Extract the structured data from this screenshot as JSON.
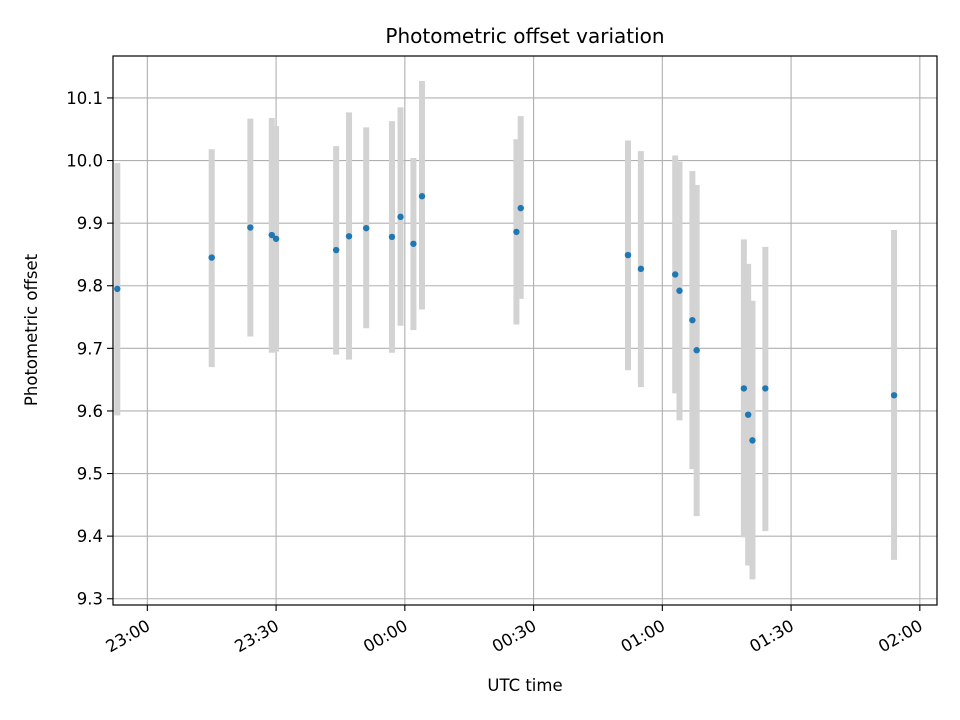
{
  "chart_data": {
    "type": "scatter",
    "title": "Photometric offset variation",
    "xlabel": "UTC time",
    "ylabel": "Photometric offset",
    "xlim": [
      "22:52",
      "02:04"
    ],
    "ylim": [
      9.29,
      10.167
    ],
    "xticks": [
      "23:00",
      "23:30",
      "00:00",
      "00:30",
      "01:00",
      "01:30",
      "02:00"
    ],
    "yticks": [
      "9.3",
      "9.4",
      "9.5",
      "9.6",
      "9.7",
      "9.8",
      "9.9",
      "10.0",
      "10.1"
    ],
    "grid": true,
    "error_bars": true,
    "colors": {
      "point": "#1f77b4",
      "errorbar": "#d3d3d3",
      "grid": "#b0b0b0"
    },
    "points": [
      {
        "t": "22:53",
        "y": 9.795,
        "lo": 9.593,
        "hi": 9.996
      },
      {
        "t": "23:15",
        "y": 9.845,
        "lo": 9.67,
        "hi": 10.018
      },
      {
        "t": "23:24",
        "y": 9.893,
        "lo": 9.719,
        "hi": 10.067
      },
      {
        "t": "23:29",
        "y": 9.881,
        "lo": 9.693,
        "hi": 10.068
      },
      {
        "t": "23:30",
        "y": 9.875,
        "lo": 9.695,
        "hi": 10.055
      },
      {
        "t": "23:44",
        "y": 9.857,
        "lo": 9.69,
        "hi": 10.023
      },
      {
        "t": "23:47",
        "y": 9.879,
        "lo": 9.682,
        "hi": 10.077
      },
      {
        "t": "23:51",
        "y": 9.892,
        "lo": 9.732,
        "hi": 10.053
      },
      {
        "t": "23:57",
        "y": 9.878,
        "lo": 9.693,
        "hi": 10.063
      },
      {
        "t": "23:59",
        "y": 9.91,
        "lo": 9.736,
        "hi": 10.085
      },
      {
        "t": "00:02",
        "y": 9.867,
        "lo": 9.729,
        "hi": 10.004
      },
      {
        "t": "00:04",
        "y": 9.943,
        "lo": 9.762,
        "hi": 10.127
      },
      {
        "t": "00:26",
        "y": 9.886,
        "lo": 9.738,
        "hi": 10.034
      },
      {
        "t": "00:27",
        "y": 9.924,
        "lo": 9.779,
        "hi": 10.071
      },
      {
        "t": "00:52",
        "y": 9.849,
        "lo": 9.665,
        "hi": 10.032
      },
      {
        "t": "00:55",
        "y": 9.827,
        "lo": 9.638,
        "hi": 10.015
      },
      {
        "t": "01:03",
        "y": 9.818,
        "lo": 9.628,
        "hi": 10.008
      },
      {
        "t": "01:04",
        "y": 9.792,
        "lo": 9.585,
        "hi": 9.998
      },
      {
        "t": "01:07",
        "y": 9.745,
        "lo": 9.507,
        "hi": 9.983
      },
      {
        "t": "01:08",
        "y": 9.697,
        "lo": 9.432,
        "hi": 9.961
      },
      {
        "t": "01:19",
        "y": 9.636,
        "lo": 9.398,
        "hi": 9.874
      },
      {
        "t": "01:20",
        "y": 9.594,
        "lo": 9.353,
        "hi": 9.835
      },
      {
        "t": "01:21",
        "y": 9.553,
        "lo": 9.331,
        "hi": 9.776
      },
      {
        "t": "01:24",
        "y": 9.636,
        "lo": 9.408,
        "hi": 9.862
      },
      {
        "t": "01:54",
        "y": 9.625,
        "lo": 9.362,
        "hi": 9.889
      }
    ]
  }
}
